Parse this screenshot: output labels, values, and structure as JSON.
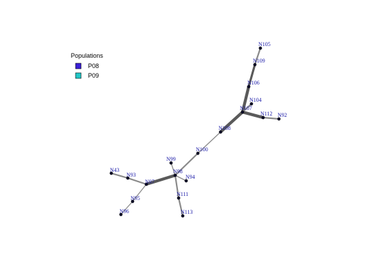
{
  "legend": {
    "title": "Populations",
    "items": [
      {
        "label": "P08",
        "color": "#3a1fd6"
      },
      {
        "label": "P09",
        "color": "#22c7c7"
      }
    ]
  },
  "nodes": [
    {
      "id": "N105"
    },
    {
      "id": "N109"
    },
    {
      "id": "N106"
    },
    {
      "id": "N104"
    },
    {
      "id": "N107"
    },
    {
      "id": "N112"
    },
    {
      "id": "N92"
    },
    {
      "id": "N108"
    },
    {
      "id": "N100"
    },
    {
      "id": "N99"
    },
    {
      "id": "N98"
    },
    {
      "id": "N94"
    },
    {
      "id": "N97"
    },
    {
      "id": "N93"
    },
    {
      "id": "N43"
    },
    {
      "id": "N95"
    },
    {
      "id": "N96"
    },
    {
      "id": "N111"
    },
    {
      "id": "N113"
    }
  ],
  "edges": [
    {
      "source": "N105",
      "target": "N109",
      "weight": 2
    },
    {
      "source": "N109",
      "target": "N106",
      "weight": 3
    },
    {
      "source": "N106",
      "target": "N107",
      "weight": 4
    },
    {
      "source": "N104",
      "target": "N107",
      "weight": 2
    },
    {
      "source": "N107",
      "target": "N112",
      "weight": 4
    },
    {
      "source": "N112",
      "target": "N92",
      "weight": 2
    },
    {
      "source": "N107",
      "target": "N108",
      "weight": 4
    },
    {
      "source": "N108",
      "target": "N100",
      "weight": 1
    },
    {
      "source": "N100",
      "target": "N98",
      "weight": 2
    },
    {
      "source": "N99",
      "target": "N98",
      "weight": 1
    },
    {
      "source": "N98",
      "target": "N94",
      "weight": 1
    },
    {
      "source": "N98",
      "target": "N97",
      "weight": 4
    },
    {
      "source": "N97",
      "target": "N93",
      "weight": 2
    },
    {
      "source": "N93",
      "target": "N43",
      "weight": 2
    },
    {
      "source": "N97",
      "target": "N95",
      "weight": 1
    },
    {
      "source": "N95",
      "target": "N96",
      "weight": 1
    },
    {
      "source": "N98",
      "target": "N111",
      "weight": 2
    },
    {
      "source": "N111",
      "target": "N113",
      "weight": 2
    }
  ]
}
